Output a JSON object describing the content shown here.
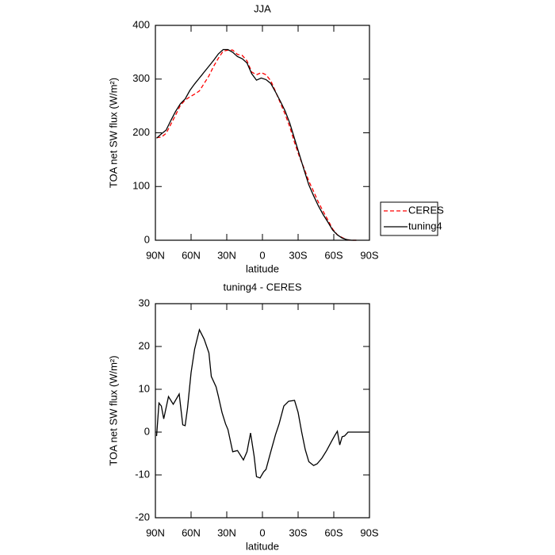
{
  "chart_data": [
    {
      "type": "line",
      "title": "JJA",
      "xlabel": "latitude",
      "ylabel": "TOA net SW flux (W/m²)",
      "x": [
        89,
        85,
        81,
        77,
        73,
        69,
        65,
        61,
        57,
        53,
        49,
        45,
        41,
        37,
        33,
        29,
        25,
        21,
        17,
        13,
        9,
        5,
        1,
        -3,
        -7,
        -11,
        -15,
        -19,
        -23,
        -27,
        -31,
        -35,
        -39,
        -43,
        -47,
        -51,
        -55,
        -59,
        -63,
        -67,
        -71,
        -75,
        -79,
        -83,
        -87
      ],
      "series": [
        {
          "name": "CERES",
          "color": "#ff0000",
          "linestyle": "dashed",
          "values": [
            191,
            192,
            199,
            216,
            233,
            251,
            261,
            267,
            272,
            278,
            292,
            306,
            324,
            339,
            352,
            354,
            354,
            346,
            344,
            334,
            313,
            308,
            312,
            308,
            297,
            277,
            256,
            235,
            211,
            182,
            156,
            134,
            110,
            91,
            71,
            54,
            38,
            21,
            10,
            5,
            1,
            0,
            0,
            null,
            null
          ]
        },
        {
          "name": "tuning4",
          "color": "#000000",
          "linestyle": "solid",
          "values": [
            190,
            198,
            205,
            223,
            240,
            254,
            263,
            279,
            291,
            302,
            313,
            324,
            335,
            347,
            355,
            355,
            350,
            342,
            338,
            330,
            310,
            298,
            302,
            299,
            292,
            276,
            259,
            241,
            218,
            189,
            160,
            131,
            103,
            83,
            64,
            48,
            34,
            19,
            10,
            4,
            1,
            0,
            0,
            null,
            null
          ]
        }
      ],
      "xlim": [
        90,
        -90
      ],
      "xticks": [
        {
          "value": 90,
          "label": "90N"
        },
        {
          "value": 60,
          "label": "60N"
        },
        {
          "value": 30,
          "label": "30N"
        },
        0,
        {
          "value": -30,
          "label": "30S"
        },
        {
          "value": -60,
          "label": "60S"
        },
        {
          "value": -90,
          "label": "90S"
        }
      ],
      "ylim": [
        0,
        400
      ],
      "yticks": [
        0,
        100,
        200,
        300,
        400
      ],
      "legend": "right"
    },
    {
      "type": "line",
      "title": "tuning4 - CERES",
      "xlabel": "latitude",
      "ylabel": "TOA net SW flux (W/m²)",
      "color": "#000000",
      "x": [
        89,
        87,
        85,
        83,
        79,
        75,
        70,
        67,
        65,
        63,
        60,
        57,
        53,
        49,
        45,
        43,
        39,
        37,
        34,
        31,
        29,
        25,
        21,
        16,
        13,
        10,
        7,
        5,
        2,
        -1,
        -3,
        -7,
        -11,
        -14,
        -18,
        -22,
        -27,
        -30,
        -33,
        -36,
        -39,
        -43,
        -46,
        -50,
        -54,
        -58,
        -61,
        -63,
        -65,
        -67,
        -69,
        -72,
        -76,
        -90
      ],
      "values": [
        -0.9,
        6.8,
        6.1,
        3.1,
        8.3,
        6.5,
        8.9,
        1.7,
        1.5,
        5.6,
        13.9,
        19.4,
        23.9,
        21.7,
        18.5,
        13,
        10.6,
        8.3,
        4.6,
        1.9,
        0.6,
        -4.6,
        -4.3,
        -6.5,
        -4.6,
        -0.2,
        -5.6,
        -10.4,
        -10.7,
        -9.3,
        -8.7,
        -4.6,
        -0.6,
        1.9,
        6.1,
        7.2,
        7.4,
        4.6,
        0,
        -4.1,
        -6.9,
        -7.8,
        -7.4,
        -6.1,
        -4.3,
        -2.2,
        -0.7,
        0.2,
        -3,
        -1.1,
        -0.9,
        0,
        0,
        0
      ],
      "xlim": [
        90,
        -90
      ],
      "xticks": [
        {
          "value": 90,
          "label": "90N"
        },
        {
          "value": 60,
          "label": "60N"
        },
        {
          "value": 30,
          "label": "30N"
        },
        0,
        {
          "value": -30,
          "label": "30S"
        },
        {
          "value": -60,
          "label": "60S"
        },
        {
          "value": -90,
          "label": "90S"
        }
      ],
      "ylim": [
        -20,
        30
      ],
      "yticks": [
        -20,
        -10,
        0,
        10,
        20,
        30
      ]
    }
  ]
}
